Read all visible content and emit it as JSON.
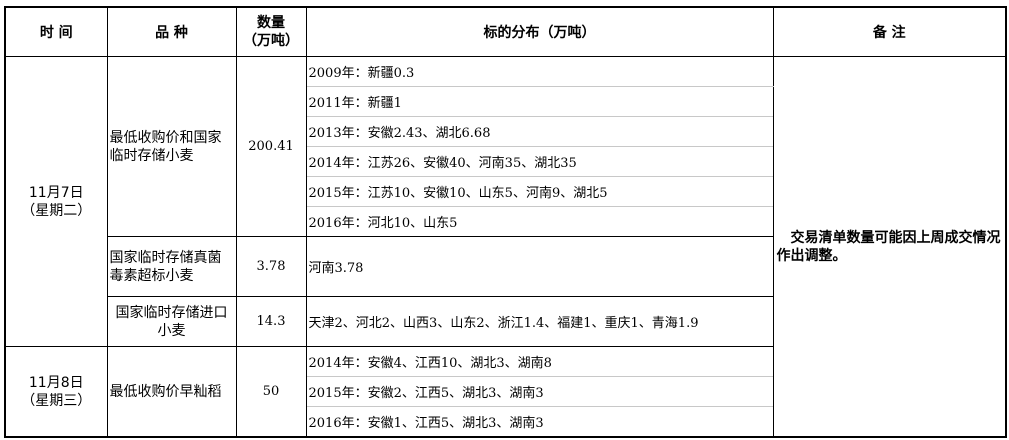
{
  "headers": {
    "time": "时 间",
    "variety": "品 种",
    "quantity_line1": "数量",
    "quantity_line2": "（万吨）",
    "distribution": "标的分布（万吨）",
    "remarks": "备 注"
  },
  "groups": [
    {
      "date": "11月7日",
      "weekday": "（星期二）",
      "items": [
        {
          "variety": "最低收购价和国家临时存储小麦",
          "quantity": "200.41",
          "distribution": [
            "2009年：新疆0.3",
            "2011年：新疆1",
            "2013年：安徽2.43、湖北6.68",
            "2014年：江苏26、安徽40、河南35、湖北35",
            "2015年：江苏10、安徽10、山东5、河南9、湖北5",
            "2016年：河北10、山东5"
          ]
        },
        {
          "variety": "国家临时存储真菌毒素超标小麦",
          "quantity": "3.78",
          "distribution": [
            "河南3.78"
          ]
        },
        {
          "variety": "国家临时存储进口小麦",
          "quantity": "14.3",
          "distribution": [
            "天津2、河北2、山西3、山东2、浙江1.4、福建1、重庆1、青海1.9"
          ]
        }
      ]
    },
    {
      "date": "11月8日",
      "weekday": "（星期三）",
      "items": [
        {
          "variety": "最低收购价早籼稻",
          "quantity": "50",
          "distribution": [
            "2014年：安徽4、江西10、湖北3、湖南8",
            "2015年：安徽2、江西5、湖北3、湖南3",
            "2016年：安徽1、江西5、湖北3、湖南3"
          ]
        }
      ]
    }
  ],
  "remarks": "交易清单数量可能因上周成交情况作出调整。"
}
